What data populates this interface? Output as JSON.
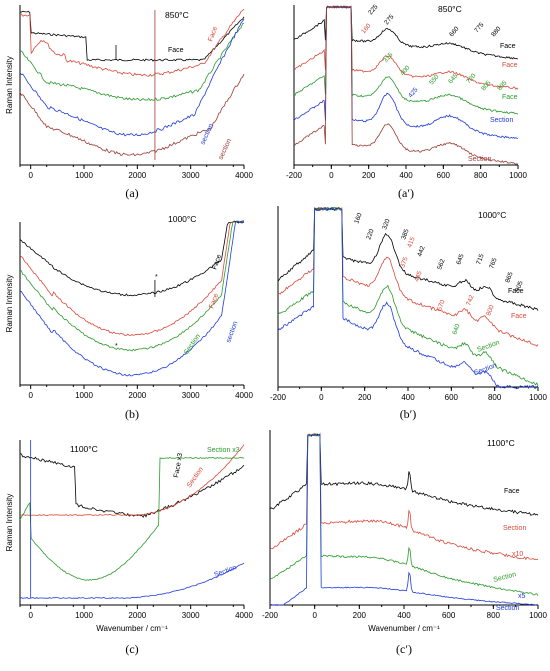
{
  "figure": {
    "panels": [
      {
        "id": "a",
        "label": "(a)",
        "temp": "850°C",
        "ylabel": "Raman Intensity",
        "xticks": [
          "0",
          "1000",
          "2000",
          "3000",
          "4000"
        ],
        "series_labels": [
          {
            "text": "Face",
            "color": "#000000",
            "rot": 0
          },
          {
            "text": "Face",
            "color": "#d94a3a",
            "rot": -70
          },
          {
            "text": "section",
            "color": "#1f3bd8",
            "rot": -65
          },
          {
            "text": "section",
            "color": "#9b3a33",
            "rot": -65
          }
        ]
      },
      {
        "id": "a2",
        "label": "(a′)",
        "temp": "850°C",
        "xticks": [
          "-200",
          "0",
          "200",
          "400",
          "600",
          "800",
          "1000"
        ],
        "series_labels": [
          {
            "text": "Face",
            "color": "#000000"
          },
          {
            "text": "Face",
            "color": "#d94a3a"
          },
          {
            "text": "Face",
            "color": "#2a9a2a"
          },
          {
            "text": "Section",
            "color": "#1f3bd8"
          },
          {
            "text": "Section",
            "color": "#9b3a33"
          }
        ],
        "peaks": [
          {
            "text": "225",
            "color": "#000000"
          },
          {
            "text": "275",
            "color": "#000000"
          },
          {
            "text": "660",
            "color": "#000000"
          },
          {
            "text": "775",
            "color": "#000000"
          },
          {
            "text": "880",
            "color": "#000000"
          },
          {
            "text": "160",
            "color": "#d94a3a"
          },
          {
            "text": "315",
            "color": "#2a9a2a"
          },
          {
            "text": "400",
            "color": "#2a9a2a"
          },
          {
            "text": "550",
            "color": "#2a9a2a"
          },
          {
            "text": "645",
            "color": "#2a9a2a"
          },
          {
            "text": "720",
            "color": "#2a9a2a"
          },
          {
            "text": "805",
            "color": "#2a9a2a"
          },
          {
            "text": "895",
            "color": "#2a9a2a"
          },
          {
            "text": "425",
            "color": "#1f3bd8"
          }
        ]
      },
      {
        "id": "b",
        "label": "(b)",
        "temp": "1000°C",
        "ylabel": "Raman Intensity",
        "xticks": [
          "0",
          "1000",
          "2000",
          "3000",
          "4000"
        ],
        "series_labels": [
          {
            "text": "Face",
            "color": "#000000"
          },
          {
            "text": "Face",
            "color": "#d94a3a"
          },
          {
            "text": "Section",
            "color": "#2a9a2a"
          },
          {
            "text": "section",
            "color": "#1f3bd8"
          }
        ],
        "marks": [
          "*",
          "*"
        ]
      },
      {
        "id": "b2",
        "label": "(b′)",
        "temp": "1000°C",
        "xticks": [
          "-200",
          "0",
          "200",
          "400",
          "600",
          "800",
          "1000"
        ],
        "series_labels": [
          {
            "text": "Face",
            "color": "#000000"
          },
          {
            "text": "Face",
            "color": "#d94a3a"
          },
          {
            "text": "Section",
            "color": "#2a9a2a"
          },
          {
            "text": "Section",
            "color": "#1f3bd8"
          }
        ],
        "peaks": [
          {
            "text": "160",
            "color": "#000000"
          },
          {
            "text": "220",
            "color": "#000000"
          },
          {
            "text": "320",
            "color": "#000000"
          },
          {
            "text": "385",
            "color": "#000000"
          },
          {
            "text": "442",
            "color": "#000000"
          },
          {
            "text": "562",
            "color": "#000000"
          },
          {
            "text": "645",
            "color": "#000000"
          },
          {
            "text": "715",
            "color": "#000000"
          },
          {
            "text": "765",
            "color": "#000000"
          },
          {
            "text": "865",
            "color": "#000000"
          },
          {
            "text": "905",
            "color": "#000000"
          },
          {
            "text": "415",
            "color": "#d94a3a"
          },
          {
            "text": "375",
            "color": "#d94a3a"
          },
          {
            "text": "445",
            "color": "#d94a3a"
          },
          {
            "text": "570",
            "color": "#d94a3a"
          },
          {
            "text": "742",
            "color": "#d94a3a"
          },
          {
            "text": "800",
            "color": "#d94a3a"
          },
          {
            "text": "640",
            "color": "#2a9a2a"
          }
        ]
      },
      {
        "id": "c",
        "label": "(c)",
        "temp": "1100°C",
        "ylabel": "Raman Intensity",
        "xlabel": "Wavenumber / cm⁻¹",
        "xticks": [
          "0",
          "1000",
          "2000",
          "3000",
          "4000"
        ],
        "series_labels": [
          {
            "text": "Face x3",
            "color": "#000000"
          },
          {
            "text": "Section x3",
            "color": "#2a9a2a"
          },
          {
            "text": "Section",
            "color": "#d94a3a"
          },
          {
            "text": "Section",
            "color": "#1f3bd8"
          }
        ]
      },
      {
        "id": "c2",
        "label": "(c′)",
        "temp": "1100°C",
        "xlabel": "Wavenumber / cm⁻¹",
        "xticks": [
          "-200",
          "0",
          "200",
          "400",
          "600",
          "800",
          "1000"
        ],
        "series_labels": [
          {
            "text": "Face",
            "color": "#000000"
          },
          {
            "text": "Section",
            "color": "#d94a3a"
          },
          {
            "text": "x10",
            "color": "#d94a3a"
          },
          {
            "text": "Section",
            "color": "#2a9a2a"
          },
          {
            "text": "x5",
            "color": "#1f3bd8"
          },
          {
            "text": "Section",
            "color": "#1f3bd8"
          }
        ]
      }
    ]
  },
  "chart_data": [
    {
      "type": "line",
      "title": "850°C",
      "ylabel": "Raman Intensity",
      "xlim": [
        -200,
        4000
      ],
      "series": [
        {
          "name": "Face",
          "values": []
        },
        {
          "name": "Face",
          "values": []
        },
        {
          "name": "section",
          "values": []
        },
        {
          "name": "section",
          "values": []
        }
      ]
    },
    {
      "type": "line",
      "title": "850°C",
      "xlim": [
        -200,
        1000
      ],
      "series": [
        {
          "name": "Face",
          "values": []
        },
        {
          "name": "Face",
          "values": []
        },
        {
          "name": "Face",
          "values": []
        },
        {
          "name": "Section",
          "values": []
        },
        {
          "name": "Section",
          "values": []
        }
      ]
    },
    {
      "type": "line",
      "title": "1000°C",
      "ylabel": "Raman Intensity",
      "xlim": [
        -200,
        4000
      ],
      "series": [
        {
          "name": "Face",
          "values": []
        },
        {
          "name": "Face",
          "values": []
        },
        {
          "name": "Section",
          "values": []
        },
        {
          "name": "section",
          "values": []
        }
      ]
    },
    {
      "type": "line",
      "title": "1000°C",
      "xlim": [
        -200,
        1000
      ],
      "series": [
        {
          "name": "Face",
          "values": []
        },
        {
          "name": "Face",
          "values": []
        },
        {
          "name": "Section",
          "values": []
        },
        {
          "name": "Section",
          "values": []
        }
      ]
    },
    {
      "type": "line",
      "title": "1100°C",
      "ylabel": "Raman Intensity",
      "xlabel": "Wavenumber / cm⁻¹",
      "xlim": [
        -200,
        4000
      ],
      "series": [
        {
          "name": "Face x3",
          "values": []
        },
        {
          "name": "Section x3",
          "values": []
        },
        {
          "name": "Section",
          "values": []
        },
        {
          "name": "Section",
          "values": []
        }
      ]
    },
    {
      "type": "line",
      "title": "1100°C",
      "xlabel": "Wavenumber / cm⁻¹",
      "xlim": [
        -200,
        1000
      ],
      "series": [
        {
          "name": "Face",
          "values": []
        },
        {
          "name": "Section",
          "values": []
        },
        {
          "name": "Section",
          "values": []
        },
        {
          "name": "Section",
          "values": []
        }
      ]
    }
  ],
  "colors": {
    "black": "#000000",
    "red": "#d94a3a",
    "green": "#2a9a2a",
    "blue": "#1f3bd8",
    "brown": "#9b3a33"
  }
}
